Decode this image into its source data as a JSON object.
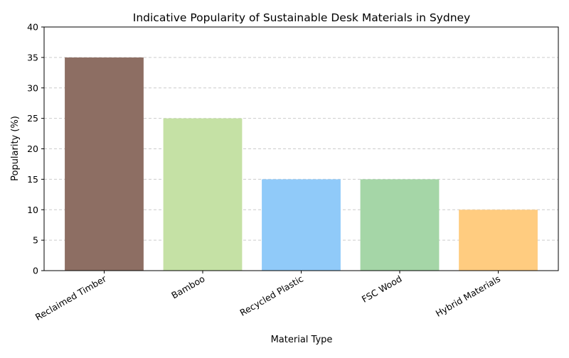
{
  "chart_data": {
    "type": "bar",
    "title": "Indicative Popularity of Sustainable Desk Materials in Sydney",
    "xlabel": "Material Type",
    "ylabel": "Popularity (%)",
    "categories": [
      "Reclaimed Timber",
      "Bamboo",
      "Recycled Plastic",
      "FSC Wood",
      "Hybrid Materials"
    ],
    "values": [
      35,
      25,
      15,
      15,
      10
    ],
    "colors": [
      "#8d6e63",
      "#c5e1a5",
      "#90caf9",
      "#a5d6a7",
      "#ffcc80"
    ],
    "ylim": [
      0,
      40
    ],
    "yticks": [
      0,
      5,
      10,
      15,
      20,
      25,
      30,
      35,
      40
    ],
    "grid": "y-dashed",
    "legend": "none"
  }
}
